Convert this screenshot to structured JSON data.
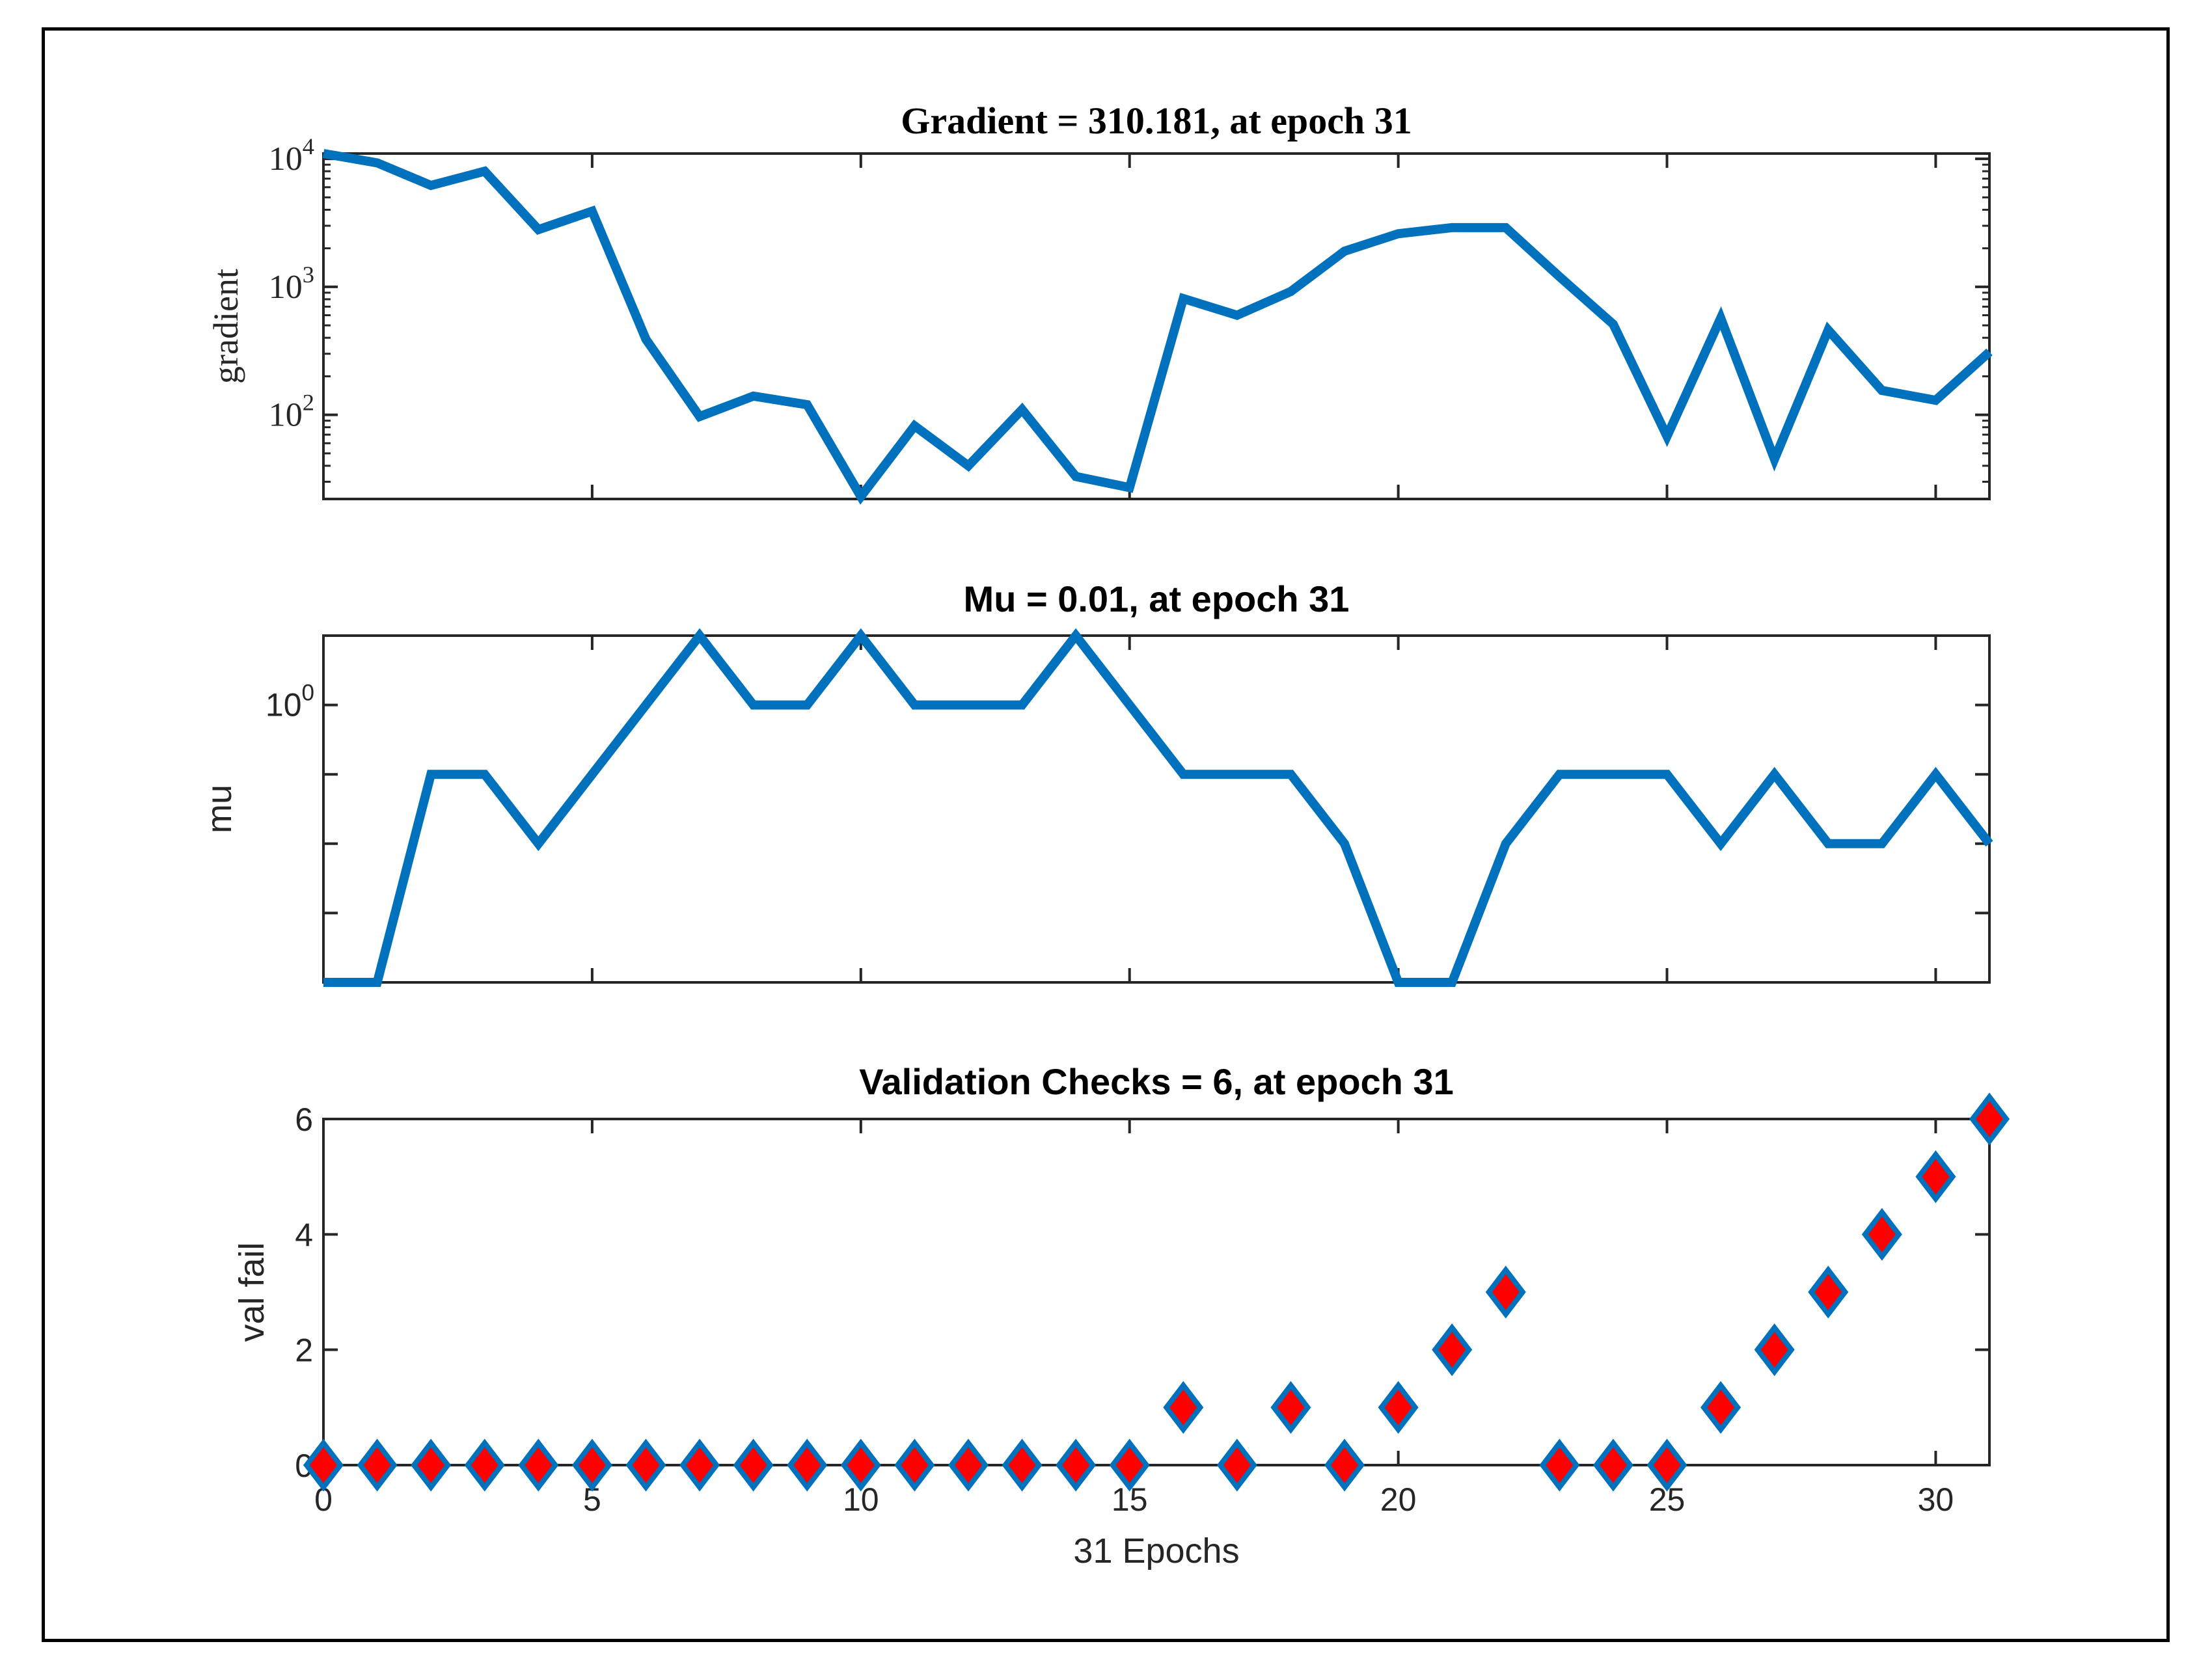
{
  "chart_data": [
    {
      "type": "line",
      "title": "Gradient = 310.181, at epoch 31",
      "xlabel": "",
      "ylabel": "gradient",
      "yscale": "log",
      "xlim": [
        0,
        31
      ],
      "ylim": [
        22,
        11000
      ],
      "y_ticks": [
        100,
        1000,
        10000
      ],
      "y_tick_labels": [
        {
          "base": "10",
          "exp": "2"
        },
        {
          "base": "10",
          "exp": "3"
        },
        {
          "base": "10",
          "exp": "4"
        }
      ],
      "x_ticks": [
        0,
        5,
        10,
        15,
        20,
        25,
        30
      ],
      "grid": false,
      "color": "#0072BD",
      "series": [
        {
          "x": [
            0,
            1,
            2,
            3,
            4,
            5,
            6,
            7,
            8,
            9,
            10,
            11,
            12,
            13,
            14,
            15,
            16,
            17,
            18,
            19,
            20,
            21,
            22,
            23,
            24,
            25,
            26,
            27,
            28,
            29,
            30,
            31
          ],
          "values": [
            11000,
            9300,
            6200,
            8000,
            2800,
            3900,
            390,
            97,
            140,
            120,
            23,
            82,
            40,
            110,
            33,
            27,
            810,
            600,
            920,
            1900,
            2600,
            2900,
            2900,
            1200,
            510,
            68,
            570,
            45,
            460,
            155,
            130,
            310
          ]
        }
      ]
    },
    {
      "type": "line",
      "title": "Mu = 0.01, at epoch 31",
      "xlabel": "",
      "ylabel": "mu",
      "yscale": "log",
      "xlim": [
        0,
        31
      ],
      "ylim": [
        0.0001,
        10
      ],
      "y_ticks": [
        0.001,
        0.01,
        0.1,
        1
      ],
      "y_tick_labels": [
        {
          "base": "",
          "exp": ""
        },
        {
          "base": "",
          "exp": ""
        },
        {
          "base": "",
          "exp": ""
        },
        {
          "base": "10",
          "exp": "0"
        }
      ],
      "x_ticks": [
        0,
        5,
        10,
        15,
        20,
        25,
        30
      ],
      "grid": false,
      "color": "#0072BD",
      "series": [
        {
          "x": [
            0,
            1,
            2,
            3,
            4,
            5,
            6,
            7,
            8,
            9,
            10,
            11,
            12,
            13,
            14,
            15,
            16,
            17,
            18,
            19,
            20,
            21,
            22,
            23,
            24,
            25,
            26,
            27,
            28,
            29,
            30,
            31
          ],
          "values": [
            0.0001,
            0.0001,
            0.1,
            0.1,
            0.01,
            0.1,
            1,
            10,
            1,
            1,
            10,
            1,
            1,
            1,
            10,
            1,
            0.1,
            0.1,
            0.1,
            0.01,
            0.0001,
            0.0001,
            0.01,
            0.1,
            0.1,
            0.1,
            0.01,
            0.1,
            0.01,
            0.01,
            0.1,
            0.01
          ]
        }
      ]
    },
    {
      "type": "scatter",
      "title": "Validation Checks = 6, at epoch 31",
      "xlabel": "31 Epochs",
      "ylabel": "val fail",
      "xlim": [
        0,
        31
      ],
      "ylim": [
        0,
        6
      ],
      "y_ticks": [
        0,
        2,
        4,
        6
      ],
      "x_ticks": [
        0,
        5,
        10,
        15,
        20,
        25,
        30
      ],
      "grid": false,
      "marker": "diamond",
      "marker_fill": "#FF0000",
      "marker_edge": "#0072BD",
      "series": [
        {
          "x": [
            0,
            1,
            2,
            3,
            4,
            5,
            6,
            7,
            8,
            9,
            10,
            11,
            12,
            13,
            14,
            15,
            16,
            17,
            18,
            19,
            20,
            21,
            22,
            23,
            24,
            25,
            26,
            27,
            28,
            29,
            30,
            31
          ],
          "values": [
            0,
            0,
            0,
            0,
            0,
            0,
            0,
            0,
            0,
            0,
            0,
            0,
            0,
            0,
            0,
            0,
            1,
            0,
            1,
            0,
            1,
            2,
            3,
            0,
            0,
            0,
            1,
            2,
            3,
            4,
            5,
            6
          ]
        }
      ]
    }
  ]
}
